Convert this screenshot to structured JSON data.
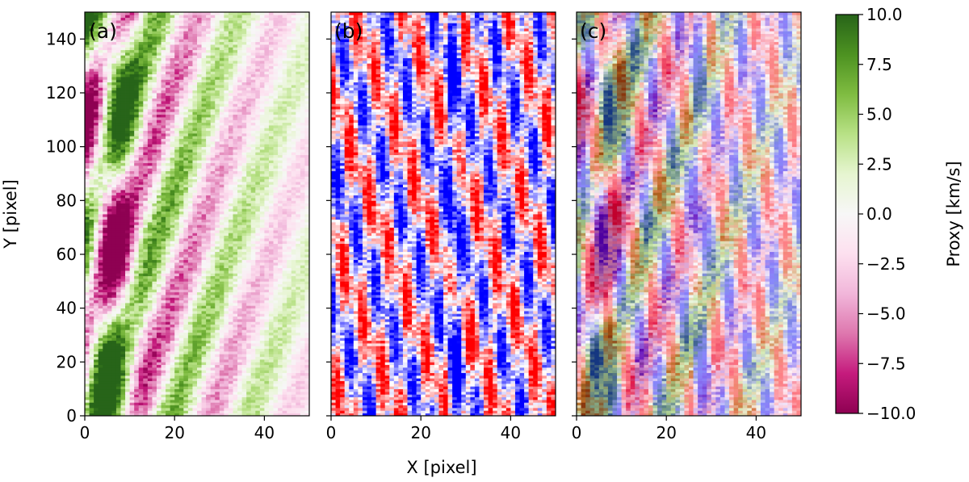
{
  "chart_data": {
    "type": "heatmap",
    "panels": [
      {
        "label": "(a)",
        "description_colormap": "PiYG"
      },
      {
        "label": "(b)",
        "description_colormap": "bwr"
      },
      {
        "label": "(c)",
        "description_colormap": "overlay of (a) and (b)"
      }
    ],
    "xlabel": "X [pixel]",
    "ylabel": "Y [pixel]",
    "xlim": [
      0,
      50
    ],
    "ylim": [
      0,
      150
    ],
    "x_ticks": [
      0,
      20,
      40
    ],
    "y_ticks": [
      0,
      20,
      40,
      60,
      80,
      100,
      120,
      140
    ],
    "grid_cols": 50,
    "grid_rows": 150,
    "colorbar": {
      "label": "Proxy [km/s]",
      "min": -10.0,
      "max": 10.0,
      "ticks": [
        "10.0",
        "7.5",
        "5.0",
        "2.5",
        "0.0",
        "−2.5",
        "−5.0",
        "−7.5",
        "−10.0"
      ],
      "colormap": "PiYG",
      "colors": [
        "#8e0152",
        "#c51b7d",
        "#de77ae",
        "#f1b6da",
        "#fde0ef",
        "#f7f7f7",
        "#e6f5d0",
        "#b8e186",
        "#7fbc41",
        "#4d9221",
        "#276419"
      ]
    },
    "panel_b_colors": [
      "#0000ff",
      "#ffffff",
      "#ff0000"
    ]
  }
}
